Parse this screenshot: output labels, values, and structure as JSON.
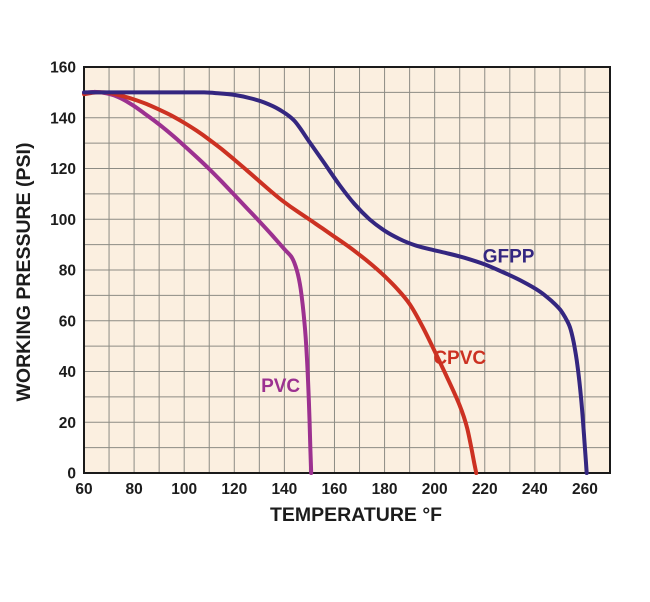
{
  "colors": {
    "page_bg": "#ffffff",
    "plot_bg": "#fbefe0",
    "grid": "#8c8b84",
    "border": "#1a1a1a",
    "text": "#1c1c1c"
  },
  "chart_data": {
    "type": "line",
    "title": "",
    "xlabel": "TEMPERATURE °F",
    "ylabel": "WORKING PRESSURE (PSI)",
    "xlim": [
      60,
      270
    ],
    "ylim": [
      0,
      160
    ],
    "x_ticks": [
      60,
      80,
      100,
      120,
      140,
      160,
      180,
      200,
      220,
      240,
      260
    ],
    "y_ticks": [
      0,
      20,
      40,
      60,
      80,
      100,
      120,
      140,
      160
    ],
    "grid": "on",
    "grid_minor_step_x": 10,
    "grid_minor_step_y": 10,
    "legend_position": "inline-labels",
    "series": [
      {
        "name": "PVC",
        "color": "#9c3190",
        "label": "PVC",
        "label_pos": {
          "x": 138.5,
          "y": 34.5
        },
        "points": [
          [
            60,
            149.7
          ],
          [
            64,
            150.2
          ],
          [
            68,
            149.8
          ],
          [
            72,
            148.8
          ],
          [
            76,
            147
          ],
          [
            80,
            144.6
          ],
          [
            84,
            141.8
          ],
          [
            88,
            138.9
          ],
          [
            92,
            135.8
          ],
          [
            96,
            132.5
          ],
          [
            100,
            129
          ],
          [
            105,
            124.5
          ],
          [
            110,
            119.8
          ],
          [
            115,
            114.8
          ],
          [
            120,
            109.6
          ],
          [
            125,
            104.4
          ],
          [
            130,
            99.2
          ],
          [
            135,
            93.8
          ],
          [
            140,
            88.2
          ],
          [
            143,
            84.9
          ],
          [
            145,
            79.8
          ],
          [
            146.5,
            72.5
          ],
          [
            148,
            59.5
          ],
          [
            149,
            45.5
          ],
          [
            149.8,
            28
          ],
          [
            150.4,
            9
          ],
          [
            150.7,
            0
          ]
        ]
      },
      {
        "name": "CPVC",
        "color": "#cc3122",
        "label": "CPVC",
        "label_pos": {
          "x": 210,
          "y": 45.5
        },
        "points": [
          [
            60,
            149.3
          ],
          [
            64,
            149.9
          ],
          [
            68,
            150
          ],
          [
            72,
            149.4
          ],
          [
            76,
            148.4
          ],
          [
            80,
            147.2
          ],
          [
            85,
            145.4
          ],
          [
            90,
            143.2
          ],
          [
            95,
            140.8
          ],
          [
            100,
            138
          ],
          [
            105,
            134.9
          ],
          [
            110,
            131.4
          ],
          [
            115,
            127.6
          ],
          [
            120,
            123.5
          ],
          [
            125,
            119.3
          ],
          [
            130,
            115
          ],
          [
            135,
            110.7
          ],
          [
            140,
            106.7
          ],
          [
            145,
            103.2
          ],
          [
            150,
            99.9
          ],
          [
            155,
            96.5
          ],
          [
            160,
            93.1
          ],
          [
            165,
            89.7
          ],
          [
            170,
            86
          ],
          [
            175,
            82
          ],
          [
            180,
            77.6
          ],
          [
            185,
            72.6
          ],
          [
            190,
            66.6
          ],
          [
            195,
            58
          ],
          [
            200,
            48
          ],
          [
            205,
            37.6
          ],
          [
            210,
            26.6
          ],
          [
            213,
            17.6
          ],
          [
            216,
            3
          ],
          [
            216.6,
            0
          ]
        ]
      },
      {
        "name": "GFPP",
        "color": "#342680",
        "label": "GFPP",
        "label_pos": {
          "x": 229.5,
          "y": 85.5
        },
        "points": [
          [
            60,
            150
          ],
          [
            70,
            150
          ],
          [
            80,
            150
          ],
          [
            90,
            150
          ],
          [
            100,
            150
          ],
          [
            108,
            150
          ],
          [
            114,
            149.6
          ],
          [
            120,
            149
          ],
          [
            126,
            147.8
          ],
          [
            132,
            146
          ],
          [
            138,
            143.2
          ],
          [
            144,
            138.8
          ],
          [
            150,
            130.5
          ],
          [
            156,
            122
          ],
          [
            162,
            113.5
          ],
          [
            168,
            106
          ],
          [
            174,
            100
          ],
          [
            180,
            95.5
          ],
          [
            186,
            92.2
          ],
          [
            192,
            89.8
          ],
          [
            198,
            88.2
          ],
          [
            205,
            86.6
          ],
          [
            212,
            84.8
          ],
          [
            220,
            82.2
          ],
          [
            228,
            78.8
          ],
          [
            235,
            75.5
          ],
          [
            242,
            71.5
          ],
          [
            247,
            67.5
          ],
          [
            250,
            64.5
          ],
          [
            252,
            61.5
          ],
          [
            254,
            57.5
          ],
          [
            255.5,
            51.5
          ],
          [
            257,
            42.5
          ],
          [
            258.5,
            29
          ],
          [
            259.6,
            15
          ],
          [
            260.4,
            4
          ],
          [
            260.7,
            0
          ]
        ]
      }
    ]
  }
}
